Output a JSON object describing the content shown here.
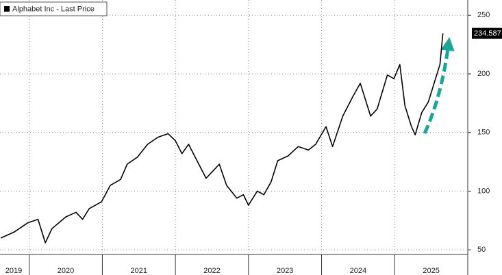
{
  "chart_data": {
    "type": "line",
    "legend": "Alphabet Inc - Last Price",
    "series": [
      {
        "name": "Alphabet Inc - Last Price",
        "color": "#000000",
        "x": [
          2019.61,
          2019.79,
          2019.98,
          2020.12,
          2020.22,
          2020.31,
          2020.5,
          2020.64,
          2020.73,
          2020.82,
          2020.99,
          2021.11,
          2021.25,
          2021.34,
          2021.48,
          2021.62,
          2021.76,
          2021.9,
          2022.0,
          2022.09,
          2022.18,
          2022.32,
          2022.42,
          2022.51,
          2022.6,
          2022.7,
          2022.84,
          2022.93,
          2023.0,
          2023.12,
          2023.21,
          2023.31,
          2023.4,
          2023.54,
          2023.68,
          2023.82,
          2023.92,
          2024.06,
          2024.15,
          2024.29,
          2024.43,
          2024.53,
          2024.67,
          2024.76,
          2024.9,
          2024.99,
          2025.07,
          2025.14,
          2025.23,
          2025.28,
          2025.37,
          2025.46,
          2025.56,
          2025.62,
          2025.66
        ],
        "values": [
          60,
          65,
          73,
          76,
          56,
          68,
          78,
          82,
          76,
          85,
          91,
          105,
          110,
          123,
          129,
          140,
          146,
          149,
          143,
          132,
          140,
          123,
          111,
          117,
          123,
          105,
          94,
          97,
          88,
          100,
          97,
          108,
          126,
          130,
          138,
          135,
          140,
          155,
          138,
          164,
          181,
          192,
          164,
          170,
          199,
          196,
          208,
          173,
          155,
          148,
          167,
          176,
          196,
          208,
          234.587
        ]
      }
    ],
    "xlim": [
      2019.6,
      2026.0
    ],
    "xgrid": [
      2020,
      2021,
      2022,
      2023,
      2024,
      2025,
      2026
    ],
    "xticks": [
      {
        "value": 2019.5,
        "label": "2019"
      },
      {
        "value": 2020.5,
        "label": "2020"
      },
      {
        "value": 2021.5,
        "label": "2021"
      },
      {
        "value": 2022.5,
        "label": "2022"
      },
      {
        "value": 2023.5,
        "label": "2023"
      },
      {
        "value": 2024.5,
        "label": "2024"
      },
      {
        "value": 2025.5,
        "label": "2025"
      }
    ],
    "ylim": [
      46,
      263
    ],
    "yticks": [
      50,
      100,
      150,
      200,
      250
    ],
    "grid": true
  }
}
